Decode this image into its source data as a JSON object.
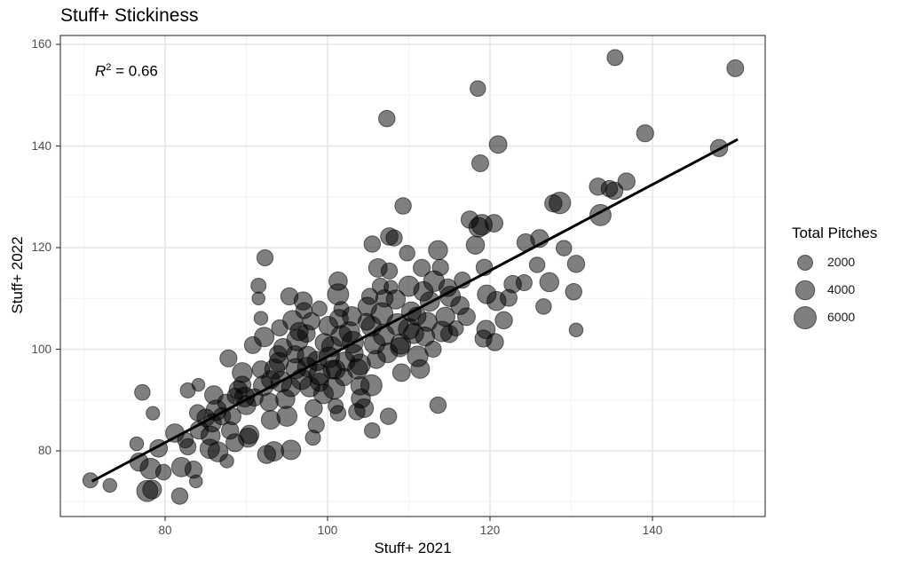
{
  "chart_data": {
    "type": "scatter",
    "title": "Stuff+ Stickiness",
    "xlabel": "Stuff+ 2021",
    "ylabel": "Stuff+ 2022",
    "xlim": [
      67,
      153.5
    ],
    "ylim": [
      66.5,
      161.5
    ],
    "x_ticks": [
      80,
      100,
      120,
      140
    ],
    "y_ticks": [
      80,
      100,
      120,
      140,
      160
    ],
    "grid": true,
    "annotation": {
      "text": "R² = 0.66",
      "r2": 0.66
    },
    "regression_line": {
      "x": [
        71,
        150.5
      ],
      "y": [
        74.0,
        141.3
      ]
    },
    "legend": {
      "title": "Total Pitches",
      "position": "right",
      "entries": [
        {
          "label": "2000",
          "size": 2000
        },
        {
          "label": "4000",
          "size": 4000
        },
        {
          "label": "6000",
          "size": 6000
        }
      ]
    },
    "point_style": {
      "fill": "#000000",
      "fill_opacity": 0.5,
      "stroke": "#000000"
    },
    "points": [
      [
        70.8,
        74.2,
        2000
      ],
      [
        73.2,
        73.2,
        1500
      ],
      [
        76.5,
        81.4,
        1500
      ],
      [
        77.2,
        91.5,
        2200
      ],
      [
        78.5,
        87.4,
        1400
      ],
      [
        76.8,
        77.8,
        3500
      ],
      [
        78.2,
        76.5,
        5000
      ],
      [
        77.8,
        72.1,
        5200
      ],
      [
        78.4,
        72.4,
        3800
      ],
      [
        79.8,
        75.8,
        2200
      ],
      [
        79.2,
        80.5,
        3200
      ],
      [
        81.2,
        83.5,
        3600
      ],
      [
        81.8,
        71.1,
        2600
      ],
      [
        82.0,
        76.8,
        4200
      ],
      [
        83.5,
        76.3,
        3000
      ],
      [
        83.8,
        74.0,
        1200
      ],
      [
        82.8,
        80.8,
        2500
      ],
      [
        82.5,
        82.1,
        2200
      ],
      [
        82.8,
        91.9,
        2000
      ],
      [
        84.1,
        93.0,
        1200
      ],
      [
        84.2,
        84.1,
        3500
      ],
      [
        85.5,
        80.4,
        4200
      ],
      [
        85.6,
        83.0,
        4000
      ],
      [
        86.3,
        88.0,
        4800
      ],
      [
        85.8,
        85.5,
        3500
      ],
      [
        86.5,
        79.8,
        4500
      ],
      [
        87.0,
        86.8,
        3000
      ],
      [
        87.6,
        78.0,
        1500
      ],
      [
        88.0,
        84.0,
        3000
      ],
      [
        88.6,
        81.6,
        3400
      ],
      [
        87.8,
        98.2,
        2900
      ],
      [
        88.6,
        90.8,
        2200
      ],
      [
        88.3,
        86.8,
        2800
      ],
      [
        89.0,
        92.0,
        3500
      ],
      [
        89.5,
        95.4,
        4500
      ],
      [
        89.8,
        90.6,
        4500
      ],
      [
        90.2,
        82.6,
        4000
      ],
      [
        90.4,
        83.2,
        3800
      ],
      [
        90.8,
        100.8,
        2800
      ],
      [
        91.5,
        112.5,
        2000
      ],
      [
        91.5,
        110.0,
        1200
      ],
      [
        92.3,
        118.0,
        2500
      ],
      [
        91.8,
        106.1,
        1500
      ],
      [
        92.2,
        102.4,
        4300
      ],
      [
        91.8,
        96.0,
        3000
      ],
      [
        92.1,
        92.8,
        4500
      ],
      [
        92.8,
        89.6,
        3500
      ],
      [
        93.0,
        86.1,
        3800
      ],
      [
        92.5,
        79.3,
        3500
      ],
      [
        93.4,
        79.9,
        4200
      ],
      [
        93.5,
        96.1,
        4500
      ],
      [
        93.9,
        99.0,
        3000
      ],
      [
        94.1,
        104.2,
        2500
      ],
      [
        94.3,
        93.6,
        5000
      ],
      [
        94.8,
        90.2,
        4000
      ],
      [
        95.0,
        86.8,
        4600
      ],
      [
        95.5,
        80.2,
        4200
      ],
      [
        94.5,
        100.3,
        3600
      ],
      [
        95.3,
        110.4,
        3000
      ],
      [
        95.7,
        105.7,
        4300
      ],
      [
        96.3,
        101.8,
        5500
      ],
      [
        96.1,
        96.2,
        4600
      ],
      [
        96.8,
        94.1,
        5000
      ],
      [
        97.1,
        107.6,
        2500
      ],
      [
        97.4,
        103.1,
        3200
      ],
      [
        97.5,
        98.6,
        4500
      ],
      [
        97.8,
        92.6,
        4600
      ],
      [
        98.3,
        88.4,
        3000
      ],
      [
        98.7,
        97.7,
        4200
      ],
      [
        98.6,
        85.1,
        2500
      ],
      [
        98.2,
        82.6,
        2000
      ],
      [
        99.0,
        95.0,
        5200
      ],
      [
        99.5,
        91.2,
        4300
      ],
      [
        99.6,
        101.3,
        3600
      ],
      [
        100.1,
        104.6,
        3900
      ],
      [
        100.2,
        98.4,
        5000
      ],
      [
        100.6,
        96.0,
        3600
      ],
      [
        100.8,
        92.3,
        5500
      ],
      [
        101.0,
        88.8,
        2000
      ],
      [
        101.3,
        87.4,
        2200
      ],
      [
        101.4,
        106.0,
        3800
      ],
      [
        101.7,
        102.6,
        5000
      ],
      [
        101.3,
        110.8,
        5300
      ],
      [
        101.3,
        113.4,
        3600
      ],
      [
        101.7,
        107.9,
        2000
      ],
      [
        102.2,
        97.6,
        4000
      ],
      [
        102.7,
        103.4,
        4800
      ],
      [
        103.1,
        101.4,
        5500
      ],
      [
        103.3,
        99.2,
        3200
      ],
      [
        103.7,
        96.1,
        4600
      ],
      [
        104.0,
        92.8,
        3600
      ],
      [
        104.1,
        90.3,
        4000
      ],
      [
        104.5,
        88.4,
        3800
      ],
      [
        103.6,
        87.7,
        2600
      ],
      [
        104.8,
        105.4,
        2800
      ],
      [
        104.9,
        108.4,
        3800
      ],
      [
        105.2,
        110.4,
        2500
      ],
      [
        105.4,
        104.5,
        4600
      ],
      [
        105.8,
        101.1,
        4900
      ],
      [
        105.4,
        92.9,
        5300
      ],
      [
        105.5,
        84.0,
        2200
      ],
      [
        105.5,
        120.7,
        2600
      ],
      [
        106.2,
        116.0,
        3700
      ],
      [
        106.5,
        112.4,
        2500
      ],
      [
        106.7,
        107.0,
        5800
      ],
      [
        106.9,
        102.8,
        5200
      ],
      [
        107.4,
        99.3,
        4400
      ],
      [
        107.6,
        115.4,
        2500
      ],
      [
        107.8,
        112.2,
        1500
      ],
      [
        107.3,
        145.4,
        2600
      ],
      [
        107.6,
        122.2,
        3100
      ],
      [
        108.2,
        121.9,
        2500
      ],
      [
        107.5,
        86.8,
        2600
      ],
      [
        108.4,
        109.8,
        4000
      ],
      [
        108.6,
        104.9,
        5500
      ],
      [
        108.9,
        100.4,
        4000
      ],
      [
        109.1,
        95.4,
        3200
      ],
      [
        109.3,
        128.2,
        2600
      ],
      [
        109.8,
        118.9,
        2200
      ],
      [
        110.0,
        112.4,
        4800
      ],
      [
        110.3,
        107.4,
        4200
      ],
      [
        110.6,
        103.1,
        4600
      ],
      [
        111.1,
        98.6,
        5000
      ],
      [
        111.4,
        96.1,
        3800
      ],
      [
        111.6,
        116.0,
        2900
      ],
      [
        111.8,
        111.4,
        4200
      ],
      [
        112.3,
        105.4,
        4000
      ],
      [
        112.6,
        109.4,
        4200
      ],
      [
        113.1,
        113.4,
        5000
      ],
      [
        113.6,
        119.5,
        4000
      ],
      [
        113.9,
        116.1,
        2500
      ],
      [
        113.6,
        89.0,
        2600
      ],
      [
        114.1,
        103.5,
        4800
      ],
      [
        114.5,
        106.4,
        4000
      ],
      [
        114.8,
        112.1,
        3200
      ],
      [
        115.1,
        110.4,
        4800
      ],
      [
        115.8,
        104.1,
        2000
      ],
      [
        116.3,
        108.6,
        3500
      ],
      [
        116.6,
        113.6,
        2500
      ],
      [
        117.1,
        106.4,
        3200
      ],
      [
        117.5,
        125.5,
        3000
      ],
      [
        118.2,
        120.5,
        3500
      ],
      [
        118.6,
        124.0,
        4300
      ],
      [
        118.5,
        151.3,
        2200
      ],
      [
        118.8,
        136.6,
        2800
      ],
      [
        119.0,
        124.5,
        5000
      ],
      [
        119.3,
        116.1,
        2600
      ],
      [
        119.6,
        110.8,
        3800
      ],
      [
        119.2,
        102.1,
        2900
      ],
      [
        119.5,
        103.9,
        3600
      ],
      [
        120.6,
        101.4,
        3000
      ],
      [
        120.5,
        124.8,
        3200
      ],
      [
        121.0,
        140.3,
        3200
      ],
      [
        120.8,
        109.5,
        4000
      ],
      [
        121.7,
        105.7,
        3000
      ],
      [
        122.3,
        110.1,
        2800
      ],
      [
        122.8,
        112.8,
        3100
      ],
      [
        124.2,
        113.1,
        2400
      ],
      [
        124.4,
        121.0,
        3200
      ],
      [
        125.8,
        116.6,
        2200
      ],
      [
        126.1,
        121.8,
        3300
      ],
      [
        126.6,
        108.4,
        2200
      ],
      [
        127.3,
        113.2,
        4000
      ],
      [
        127.8,
        128.7,
        3000
      ],
      [
        128.6,
        128.8,
        5500
      ],
      [
        129.1,
        119.9,
        2200
      ],
      [
        130.3,
        111.3,
        2600
      ],
      [
        130.6,
        116.8,
        3000
      ],
      [
        130.6,
        103.8,
        1500
      ],
      [
        133.3,
        132.0,
        3000
      ],
      [
        134.7,
        131.6,
        2600
      ],
      [
        135.3,
        131.2,
        3000
      ],
      [
        133.6,
        126.4,
        5300
      ],
      [
        135.4,
        157.4,
        2400
      ],
      [
        136.8,
        133.0,
        3000
      ],
      [
        139.1,
        142.5,
        2900
      ],
      [
        148.2,
        139.6,
        3000
      ],
      [
        150.2,
        155.3,
        2800
      ],
      [
        97.0,
        109.5,
        3500
      ],
      [
        96.0,
        99.0,
        3000
      ],
      [
        94.0,
        97.5,
        4000
      ],
      [
        93.0,
        94.0,
        3500
      ],
      [
        91.0,
        90.5,
        3000
      ],
      [
        90.0,
        89.0,
        4000
      ],
      [
        89.5,
        93.0,
        3000
      ],
      [
        87.5,
        89.5,
        2800
      ],
      [
        86.0,
        91.0,
        3600
      ],
      [
        85.0,
        86.5,
        3200
      ],
      [
        84.0,
        87.5,
        2500
      ],
      [
        99.0,
        108.0,
        2000
      ],
      [
        98.0,
        105.5,
        3000
      ],
      [
        96.5,
        103.5,
        3500
      ],
      [
        110.0,
        104.0,
        5000
      ],
      [
        112.0,
        102.5,
        4000
      ],
      [
        109.0,
        101.0,
        4500
      ],
      [
        106.0,
        98.0,
        3500
      ],
      [
        104.0,
        97.0,
        5000
      ],
      [
        102.0,
        94.5,
        3000
      ],
      [
        101.0,
        96.0,
        4000
      ],
      [
        99.0,
        93.5,
        3500
      ],
      [
        97.5,
        96.5,
        4200
      ],
      [
        95.5,
        92.5,
        3800
      ],
      [
        100.5,
        100.5,
        4500
      ],
      [
        103.0,
        106.5,
        4000
      ],
      [
        107.0,
        110.0,
        3000
      ],
      [
        111.0,
        106.5,
        3500
      ],
      [
        115.0,
        103.0,
        3000
      ],
      [
        113.0,
        100.0,
        2500
      ]
    ]
  },
  "axes": {
    "x_tick_labels": [
      "80",
      "100",
      "120",
      "140"
    ],
    "y_tick_labels": [
      "80",
      "100",
      "120",
      "140",
      "160"
    ]
  },
  "labels": {
    "title": "Stuff+ Stickiness",
    "xlabel": "Stuff+ 2021",
    "ylabel": "Stuff+ 2022",
    "r2_prefix": "R",
    "r2_sup": "2",
    "r2_value": " = 0.66",
    "legend_title": "Total Pitches",
    "legend_labels": [
      "2000",
      "4000",
      "6000"
    ]
  },
  "colors": {
    "point": "#000000",
    "grid_major": "#ebebeb",
    "grid_minor": "#f5f5f5",
    "panel_border": "#333333",
    "line": "#000000",
    "tick_text": "#4d4d4d"
  }
}
